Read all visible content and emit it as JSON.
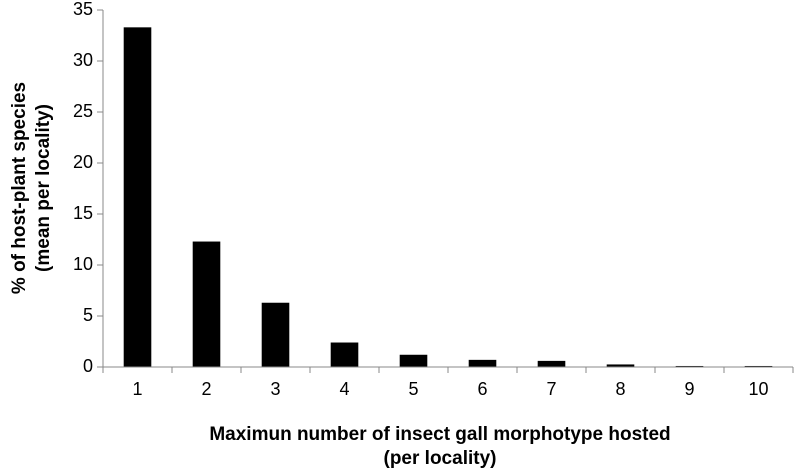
{
  "chart_data": {
    "type": "bar",
    "categories": [
      "1",
      "2",
      "3",
      "4",
      "5",
      "6",
      "7",
      "8",
      "9",
      "10"
    ],
    "values": [
      33.3,
      12.3,
      6.3,
      2.4,
      1.2,
      0.7,
      0.6,
      0.25,
      0.1,
      0.1
    ],
    "xlabel_line1": "Maximun number of insect gall morphotype hosted",
    "xlabel_line2": "(per locality)",
    "ylabel_line1": "% of host-plant species",
    "ylabel_line2": "(mean per locality)",
    "ylim": [
      0,
      35
    ],
    "yticks": [
      "0",
      "5",
      "10",
      "15",
      "20",
      "25",
      "30",
      "35"
    ],
    "grid": false,
    "colors": {
      "bar": "#000000",
      "axis": "#888888"
    }
  }
}
